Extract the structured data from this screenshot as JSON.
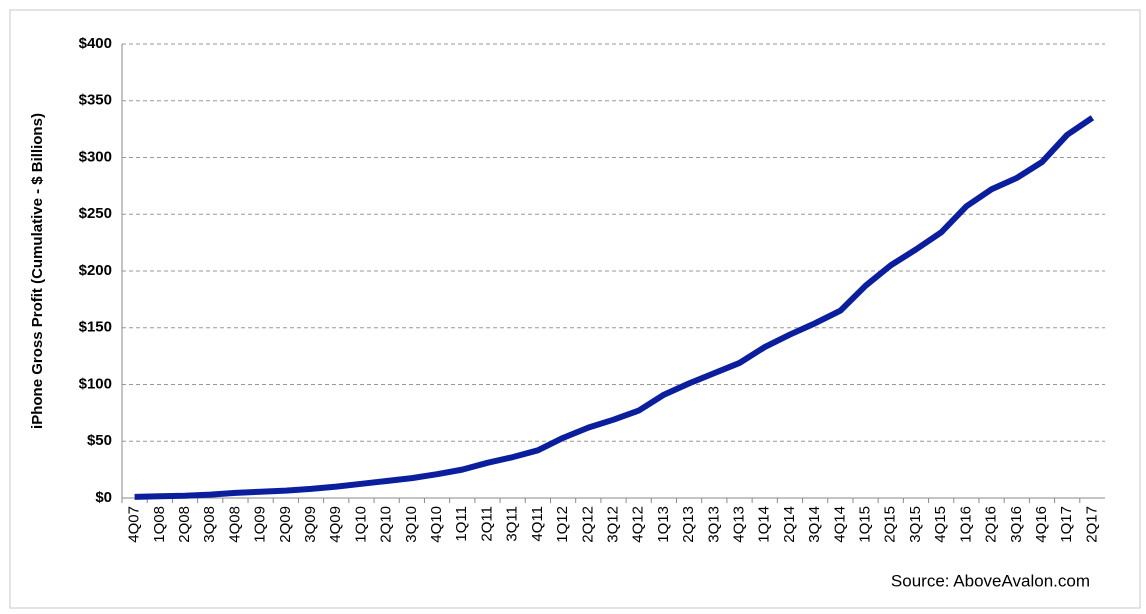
{
  "chart_data": {
    "type": "line",
    "y_label": "iPhone Gross Profit (Cumulative - $ Billions)",
    "source": "Source: AboveAvalon.com",
    "categories": [
      "4Q07",
      "1Q08",
      "2Q08",
      "3Q08",
      "4Q08",
      "1Q09",
      "2Q09",
      "3Q09",
      "4Q09",
      "1Q10",
      "2Q10",
      "3Q10",
      "4Q10",
      "1Q11",
      "2Q11",
      "3Q11",
      "4Q11",
      "1Q12",
      "2Q12",
      "3Q12",
      "4Q12",
      "1Q13",
      "2Q13",
      "3Q13",
      "4Q13",
      "1Q14",
      "2Q14",
      "3Q14",
      "4Q14",
      "1Q15",
      "2Q15",
      "3Q15",
      "4Q15",
      "1Q16",
      "2Q16",
      "3Q16",
      "4Q16",
      "1Q17",
      "2Q17"
    ],
    "series": [
      {
        "color": "#0b1f9e",
        "values": [
          1,
          1.5,
          2,
          3,
          4.5,
          5.5,
          6.5,
          8,
          10,
          12.5,
          15,
          17.5,
          21,
          25,
          31,
          36,
          42,
          53,
          62,
          69,
          77,
          91,
          101,
          110,
          119,
          133,
          144,
          154,
          165,
          187,
          205,
          219,
          234,
          257,
          272,
          282,
          296,
          320,
          335
        ]
      }
    ],
    "ylim": [
      0,
      400
    ],
    "yticks": [
      {
        "value": 0,
        "label": "$0"
      },
      {
        "value": 50,
        "label": "$50"
      },
      {
        "value": 100,
        "label": "$100"
      },
      {
        "value": 150,
        "label": "$150"
      },
      {
        "value": 200,
        "label": "$200"
      },
      {
        "value": 250,
        "label": "$250"
      },
      {
        "value": 300,
        "label": "$300"
      },
      {
        "value": 350,
        "label": "$350"
      },
      {
        "value": 400,
        "label": "$400"
      }
    ],
    "grid": true
  }
}
